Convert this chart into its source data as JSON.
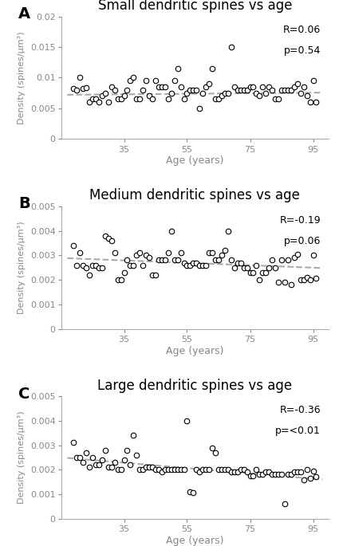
{
  "panel_A": {
    "title": "Small dendritic spines vs age",
    "ylabel": "Density (spines/μm³)",
    "xlabel": "Age (years)",
    "R": "R=0.06",
    "p": "p=0.54",
    "ylim": [
      0,
      0.02
    ],
    "yticks": [
      0,
      0.005,
      0.01,
      0.015,
      0.02
    ],
    "xlim": [
      15,
      100
    ],
    "xticks": [
      35,
      55,
      75,
      95
    ],
    "trendline_x": [
      17,
      98
    ],
    "trendline_y": [
      0.0072,
      0.00755
    ],
    "x": [
      19,
      20,
      21,
      22,
      23,
      24,
      25,
      26,
      27,
      28,
      29,
      30,
      31,
      32,
      33,
      34,
      35,
      36,
      37,
      38,
      39,
      40,
      41,
      42,
      43,
      44,
      45,
      46,
      47,
      48,
      49,
      50,
      51,
      52,
      53,
      54,
      55,
      56,
      57,
      58,
      59,
      60,
      61,
      62,
      63,
      64,
      65,
      66,
      67,
      68,
      69,
      70,
      71,
      72,
      73,
      74,
      75,
      76,
      77,
      78,
      79,
      80,
      81,
      82,
      83,
      84,
      85,
      86,
      87,
      88,
      89,
      90,
      91,
      92,
      93,
      94,
      95,
      96
    ],
    "y": [
      0.0082,
      0.008,
      0.01,
      0.0082,
      0.0083,
      0.006,
      0.0065,
      0.0065,
      0.006,
      0.007,
      0.0075,
      0.006,
      0.0085,
      0.008,
      0.0065,
      0.0065,
      0.007,
      0.008,
      0.0095,
      0.01,
      0.0065,
      0.0065,
      0.008,
      0.0095,
      0.007,
      0.0065,
      0.0095,
      0.0085,
      0.0085,
      0.0085,
      0.0065,
      0.0075,
      0.0095,
      0.0115,
      0.0085,
      0.0065,
      0.0075,
      0.008,
      0.008,
      0.008,
      0.005,
      0.0075,
      0.0085,
      0.009,
      0.0115,
      0.0065,
      0.0065,
      0.007,
      0.0075,
      0.0075,
      0.015,
      0.0085,
      0.008,
      0.008,
      0.008,
      0.008,
      0.0085,
      0.0085,
      0.0075,
      0.007,
      0.0085,
      0.0075,
      0.0085,
      0.008,
      0.0065,
      0.0065,
      0.008,
      0.008,
      0.008,
      0.008,
      0.0085,
      0.009,
      0.0075,
      0.0085,
      0.007,
      0.006,
      0.0095,
      0.006
    ]
  },
  "panel_B": {
    "title": "Medium dendritic spines vs age",
    "ylabel": "Density (spines/μm³)",
    "xlabel": "Age (years)",
    "R": "R=-0.19",
    "p": "p=0.06",
    "ylim": [
      0,
      0.005
    ],
    "yticks": [
      0,
      0.001,
      0.002,
      0.003,
      0.004,
      0.005
    ],
    "xlim": [
      15,
      100
    ],
    "xticks": [
      35,
      55,
      75,
      95
    ],
    "trendline_x": [
      17,
      98
    ],
    "trendline_y": [
      0.00288,
      0.00248
    ],
    "x": [
      19,
      20,
      21,
      22,
      23,
      24,
      25,
      26,
      27,
      28,
      29,
      30,
      31,
      32,
      33,
      34,
      35,
      36,
      37,
      38,
      39,
      40,
      41,
      42,
      43,
      44,
      45,
      46,
      47,
      48,
      49,
      50,
      51,
      52,
      53,
      54,
      55,
      56,
      57,
      58,
      59,
      60,
      61,
      62,
      63,
      64,
      65,
      66,
      67,
      68,
      69,
      70,
      71,
      72,
      73,
      74,
      75,
      76,
      77,
      78,
      79,
      80,
      81,
      82,
      83,
      84,
      85,
      86,
      87,
      88,
      89,
      90,
      91,
      92,
      93,
      94,
      95,
      96
    ],
    "y": [
      0.0034,
      0.0026,
      0.0031,
      0.0026,
      0.0025,
      0.0022,
      0.0026,
      0.0026,
      0.0025,
      0.0025,
      0.0038,
      0.0037,
      0.0036,
      0.0031,
      0.002,
      0.002,
      0.0023,
      0.0028,
      0.0026,
      0.0026,
      0.003,
      0.0031,
      0.0026,
      0.003,
      0.0029,
      0.0022,
      0.0022,
      0.0028,
      0.0028,
      0.0028,
      0.0031,
      0.004,
      0.0028,
      0.0028,
      0.0031,
      0.0027,
      0.0026,
      0.0026,
      0.0027,
      0.0027,
      0.0026,
      0.0026,
      0.0026,
      0.0031,
      0.0031,
      0.0028,
      0.0028,
      0.003,
      0.0032,
      0.004,
      0.0028,
      0.0025,
      0.0027,
      0.0027,
      0.0025,
      0.0025,
      0.0023,
      0.0023,
      0.0026,
      0.002,
      0.0023,
      0.0023,
      0.0025,
      0.0028,
      0.0025,
      0.0019,
      0.0028,
      0.0019,
      0.0028,
      0.0018,
      0.0029,
      0.00305,
      0.002,
      0.002,
      0.0021,
      0.002,
      0.003,
      0.00205
    ]
  },
  "panel_C": {
    "title": "Large dendritic spines vs age",
    "ylabel": "Density (spines/μm³)",
    "xlabel": "Age (years)",
    "R": "R=-0.36",
    "p": "p=<0.01",
    "ylim": [
      0,
      0.005
    ],
    "yticks": [
      0,
      0.001,
      0.002,
      0.003,
      0.004,
      0.005
    ],
    "xlim": [
      15,
      100
    ],
    "xticks": [
      35,
      55,
      75,
      95
    ],
    "trendline_x": [
      17,
      98
    ],
    "trendline_y": [
      0.00248,
      0.0016
    ],
    "x": [
      19,
      20,
      21,
      22,
      23,
      24,
      25,
      26,
      27,
      28,
      29,
      30,
      31,
      32,
      33,
      34,
      35,
      36,
      37,
      38,
      39,
      40,
      41,
      42,
      43,
      44,
      45,
      46,
      47,
      48,
      49,
      50,
      51,
      52,
      53,
      54,
      55,
      56,
      57,
      58,
      59,
      60,
      61,
      62,
      63,
      64,
      65,
      66,
      67,
      68,
      69,
      70,
      71,
      72,
      73,
      74,
      75,
      76,
      77,
      78,
      79,
      80,
      81,
      82,
      83,
      84,
      85,
      86,
      87,
      88,
      89,
      90,
      91,
      92,
      93,
      94,
      95,
      96
    ],
    "y": [
      0.0031,
      0.0025,
      0.0025,
      0.0023,
      0.0027,
      0.0021,
      0.0025,
      0.0022,
      0.0022,
      0.0024,
      0.0028,
      0.0021,
      0.0021,
      0.0023,
      0.002,
      0.002,
      0.0024,
      0.0028,
      0.0022,
      0.0034,
      0.0026,
      0.002,
      0.002,
      0.0021,
      0.0021,
      0.0021,
      0.002,
      0.002,
      0.0019,
      0.002,
      0.002,
      0.002,
      0.002,
      0.002,
      0.002,
      0.002,
      0.004,
      0.0011,
      0.00105,
      0.002,
      0.0019,
      0.002,
      0.002,
      0.002,
      0.0029,
      0.0027,
      0.002,
      0.002,
      0.002,
      0.002,
      0.0019,
      0.0019,
      0.0019,
      0.002,
      0.002,
      0.0019,
      0.00175,
      0.00175,
      0.002,
      0.0018,
      0.0018,
      0.0019,
      0.0019,
      0.0018,
      0.0018,
      0.0018,
      0.0018,
      0.0006,
      0.0018,
      0.0018,
      0.0019,
      0.0019,
      0.0019,
      0.0016,
      0.002,
      0.00165,
      0.00195,
      0.0017
    ]
  },
  "panel_labels": [
    "A",
    "B",
    "C"
  ],
  "scatter_color": "white",
  "scatter_edgecolor": "black",
  "scatter_size": 22,
  "scatter_lw": 0.8,
  "trendline_color": "#aaaaaa",
  "trendline_style": "--",
  "trendline_lw": 1.5,
  "axis_label_color": "#888888",
  "tick_color": "#888888",
  "spine_color": "#aaaaaa",
  "title_fontsize": 12,
  "label_fontsize": 8,
  "xlabel_fontsize": 9,
  "annot_fontsize": 9,
  "panel_label_fontsize": 14
}
